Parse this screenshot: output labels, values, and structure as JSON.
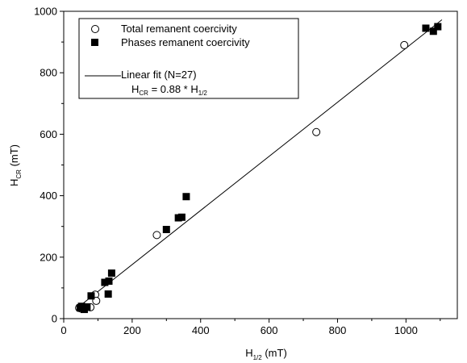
{
  "chart_data": {
    "type": "scatter",
    "xlabel": {
      "main": "H",
      "sub": "1/2",
      "unit": " (mT)"
    },
    "ylabel": {
      "main": "H",
      "sub": "CR",
      "unit": " (mT)"
    },
    "xlim": [
      0,
      1150
    ],
    "ylim": [
      0,
      1000
    ],
    "xticks": [
      0,
      200,
      400,
      600,
      800,
      1000
    ],
    "yticks": [
      0,
      200,
      400,
      600,
      800,
      1000
    ],
    "grid": false,
    "legend_position": "top-left",
    "series": [
      {
        "name": "Total remanent coercivity",
        "marker": "open-circle",
        "color": "#000000",
        "points": [
          [
            45,
            35
          ],
          [
            50,
            33
          ],
          [
            55,
            38
          ],
          [
            60,
            32
          ],
          [
            65,
            36
          ],
          [
            78,
            37
          ],
          [
            92,
            78
          ],
          [
            95,
            58
          ],
          [
            272,
            272
          ],
          [
            738,
            607
          ],
          [
            995,
            890
          ]
        ]
      },
      {
        "name": "Phases remanent coercivity",
        "marker": "filled-square",
        "color": "#000000",
        "points": [
          [
            48,
            35
          ],
          [
            52,
            40
          ],
          [
            60,
            30
          ],
          [
            68,
            38
          ],
          [
            80,
            74
          ],
          [
            120,
            118
          ],
          [
            130,
            80
          ],
          [
            132,
            122
          ],
          [
            140,
            148
          ],
          [
            300,
            290
          ],
          [
            335,
            328
          ],
          [
            345,
            330
          ],
          [
            358,
            397
          ],
          [
            1058,
            945
          ],
          [
            1080,
            935
          ],
          [
            1093,
            950
          ]
        ]
      }
    ],
    "fit": {
      "name": "Linear fit  (N=27)",
      "slope": 0.88,
      "x_range": [
        40,
        1105
      ],
      "equation": {
        "lhs": "H",
        "lhs_sub": "CR",
        "mid": " = 0.88 * H",
        "rhs_sub": "1/2"
      }
    }
  }
}
